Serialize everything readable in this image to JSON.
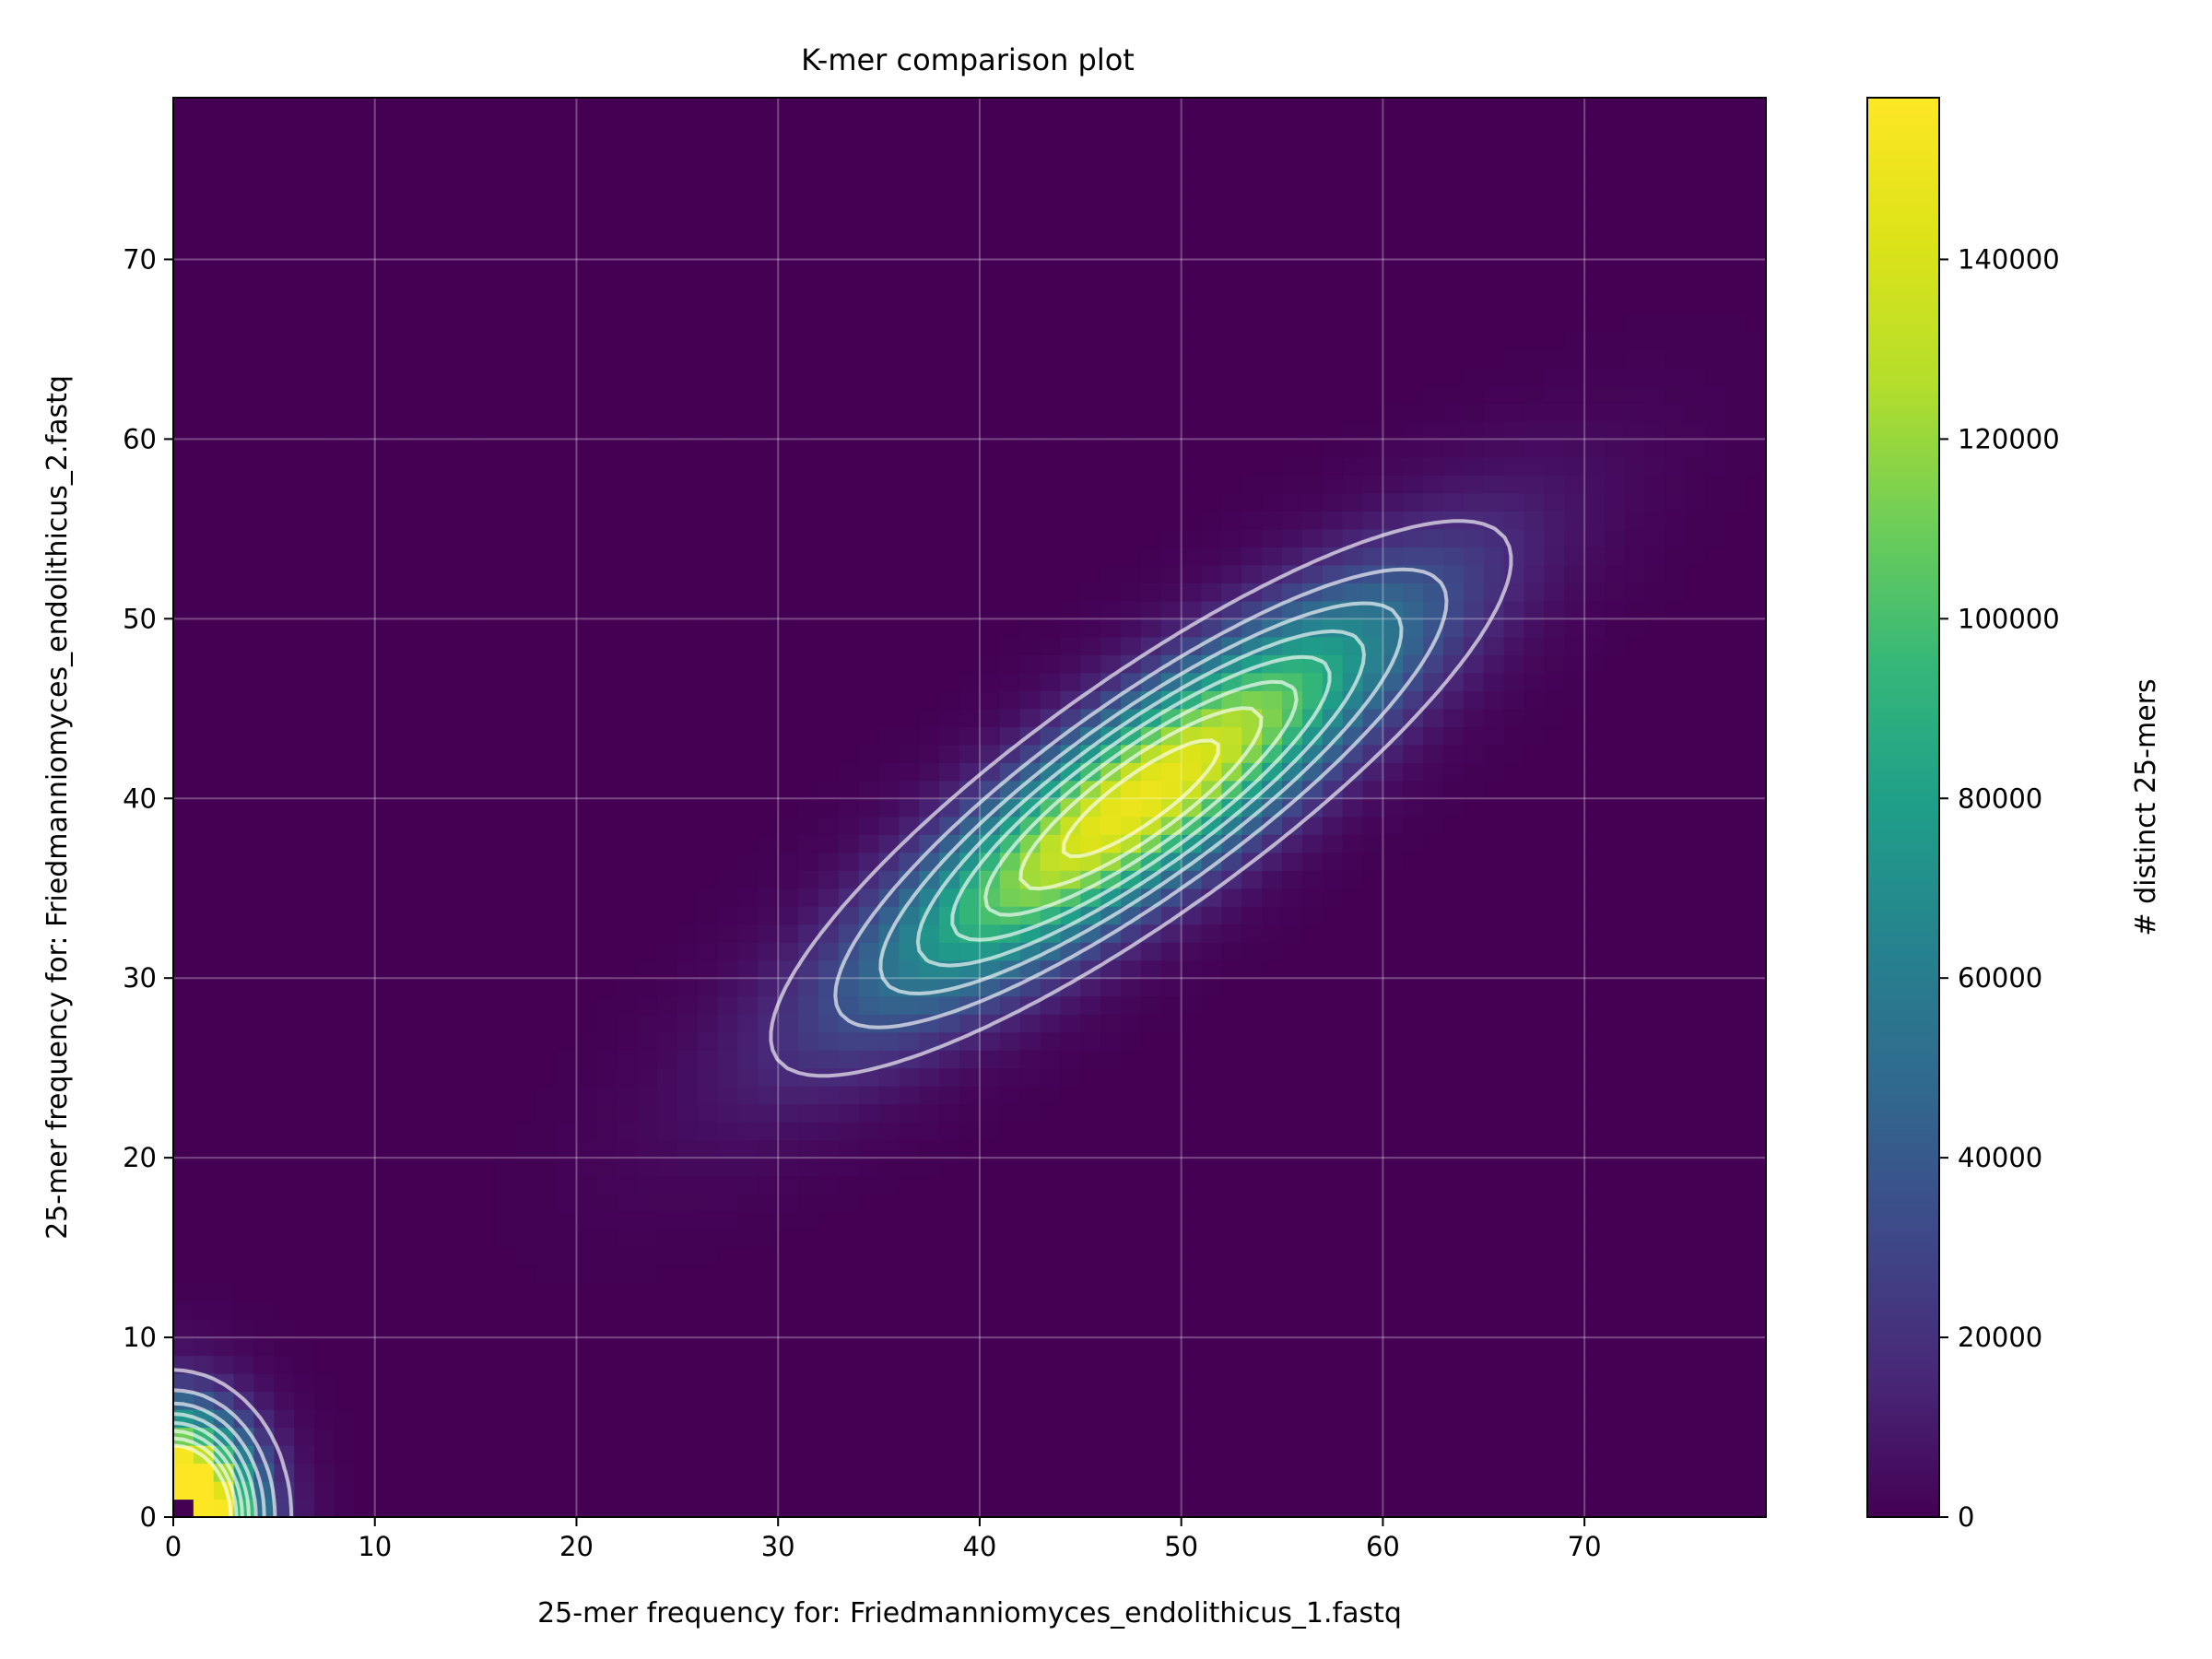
{
  "chart_data": {
    "type": "heatmap",
    "title": "K-mer comparison plot",
    "xlabel": "25-mer frequency for: Friedmanniomyces_endolithicus_1.fastq",
    "ylabel": "25-mer frequency for: Friedmanniomyces_endolithicus_2.fastq",
    "xlim": [
      0,
      79
    ],
    "ylim": [
      0,
      79
    ],
    "x_ticks": [
      0,
      10,
      20,
      30,
      40,
      50,
      60,
      70
    ],
    "y_ticks": [
      0,
      10,
      20,
      30,
      40,
      50,
      60,
      70
    ],
    "grid": true,
    "colormap": "viridis",
    "colorbar": {
      "label": "# distinct 25-mers",
      "min": 0,
      "max": 158000,
      "ticks": [
        0,
        20000,
        40000,
        60000,
        80000,
        100000,
        120000,
        140000
      ]
    },
    "distributions": [
      {
        "mean_x": 48,
        "mean_y": 40,
        "sd_x": 8.8,
        "sd_y": 7.4,
        "correlation": 0.86,
        "peak": 150000
      },
      {
        "mean_x": 0,
        "mean_y": 0,
        "sd_x": 2.5,
        "sd_y": 3.5,
        "correlation": 0.0,
        "peak": 260000
      }
    ],
    "contour_levels": [
      17000,
      34000,
      51000,
      68000,
      85000,
      102000,
      119000,
      136000
    ]
  }
}
